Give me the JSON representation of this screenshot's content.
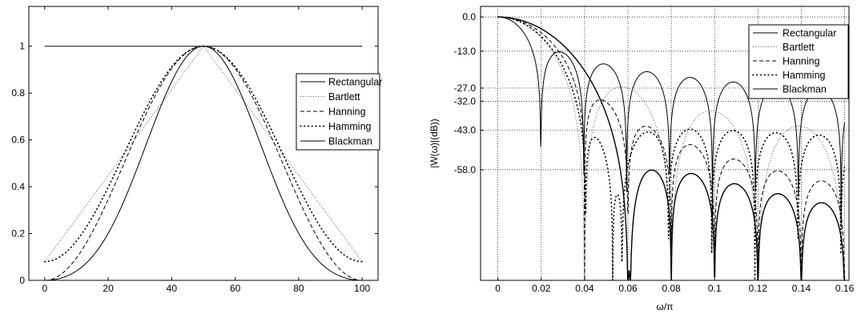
{
  "chart_data": [
    {
      "type": "line",
      "title": "",
      "xlabel": "",
      "ylabel": "",
      "xlim": [
        -5,
        105
      ],
      "ylim": [
        0,
        1.17
      ],
      "xticks": [
        0,
        20,
        40,
        60,
        80,
        100
      ],
      "xtick_labels": [
        "0",
        "20",
        "40",
        "60",
        "80",
        "100"
      ],
      "yticks": [
        0,
        0.2,
        0.4,
        0.6,
        0.8,
        1
      ],
      "ytick_labels": [
        "0",
        "0.2",
        "0.4",
        "0.6",
        "0.8",
        "1"
      ],
      "grid": false,
      "legend_position": "right",
      "x": [
        0,
        5,
        10,
        15,
        20,
        25,
        30,
        35,
        40,
        45,
        50,
        55,
        60,
        65,
        70,
        75,
        80,
        85,
        90,
        95,
        100
      ],
      "series": [
        {
          "name": "Rectangular",
          "style": "solid",
          "values": [
            1,
            1,
            1,
            1,
            1,
            1,
            1,
            1,
            1,
            1,
            1,
            1,
            1,
            1,
            1,
            1,
            1,
            1,
            1,
            1,
            1
          ]
        },
        {
          "name": "Bartlett",
          "style": "dotted",
          "values": [
            0.08,
            0.1,
            0.15,
            0.22,
            0.32,
            0.43,
            0.55,
            0.66,
            0.79,
            0.9,
            1.0,
            0.9,
            0.79,
            0.66,
            0.55,
            0.43,
            0.32,
            0.22,
            0.15,
            0.1,
            0.08
          ]
        },
        {
          "name": "Hanning",
          "style": "dashed",
          "values": [
            0,
            0.02,
            0.1,
            0.21,
            0.35,
            0.5,
            0.65,
            0.79,
            0.9,
            0.98,
            1.0,
            0.98,
            0.9,
            0.79,
            0.65,
            0.5,
            0.35,
            0.21,
            0.1,
            0.02,
            0
          ]
        },
        {
          "name": "Hamming",
          "style": "dots",
          "values": [
            0.08,
            0.1,
            0.17,
            0.27,
            0.4,
            0.54,
            0.68,
            0.81,
            0.91,
            0.98,
            1.0,
            0.98,
            0.91,
            0.81,
            0.68,
            0.54,
            0.4,
            0.27,
            0.17,
            0.1,
            0.08
          ]
        },
        {
          "name": "Blackman",
          "style": "solid",
          "values": [
            0,
            0.01,
            0.04,
            0.11,
            0.2,
            0.34,
            0.51,
            0.68,
            0.85,
            0.96,
            1.0,
            0.96,
            0.85,
            0.68,
            0.51,
            0.34,
            0.2,
            0.11,
            0.04,
            0.01,
            0
          ]
        }
      ]
    },
    {
      "type": "line",
      "title": "",
      "xlabel": "ω/π",
      "ylabel": "|W(ω)|(dB))",
      "xlim": [
        -0.008,
        0.162
      ],
      "ylim": [
        -100,
        4
      ],
      "xticks": [
        0,
        0.02,
        0.04,
        0.06,
        0.08,
        0.1,
        0.12,
        0.14,
        0.16
      ],
      "xtick_labels": [
        "0",
        "0.02",
        "0.04",
        "0.06",
        "0.08",
        "0.1",
        "0.12",
        "0.14",
        "0.16"
      ],
      "yticks": [
        0,
        -13,
        -27,
        -32,
        -43,
        -58
      ],
      "ytick_labels": [
        "0.0",
        "-13.0",
        "-27.0",
        "-32.0",
        "-43.0",
        "-58.0"
      ],
      "grid": true,
      "legend_position": "top-right",
      "window_length": 101,
      "series": [
        {
          "name": "Rectangular",
          "style": "solid",
          "first_null": 0.02,
          "sidelobe_db": -13
        },
        {
          "name": "Bartlett",
          "style": "dotted",
          "first_null": 0.04,
          "sidelobe_db": -27
        },
        {
          "name": "Hanning",
          "style": "dashed",
          "first_null": 0.04,
          "sidelobe_db": -32
        },
        {
          "name": "Hamming",
          "style": "dots",
          "first_null": 0.04,
          "sidelobe_db": -43
        },
        {
          "name": "Blackman",
          "style": "solid",
          "first_null": 0.06,
          "sidelobe_db": -58
        }
      ]
    }
  ]
}
